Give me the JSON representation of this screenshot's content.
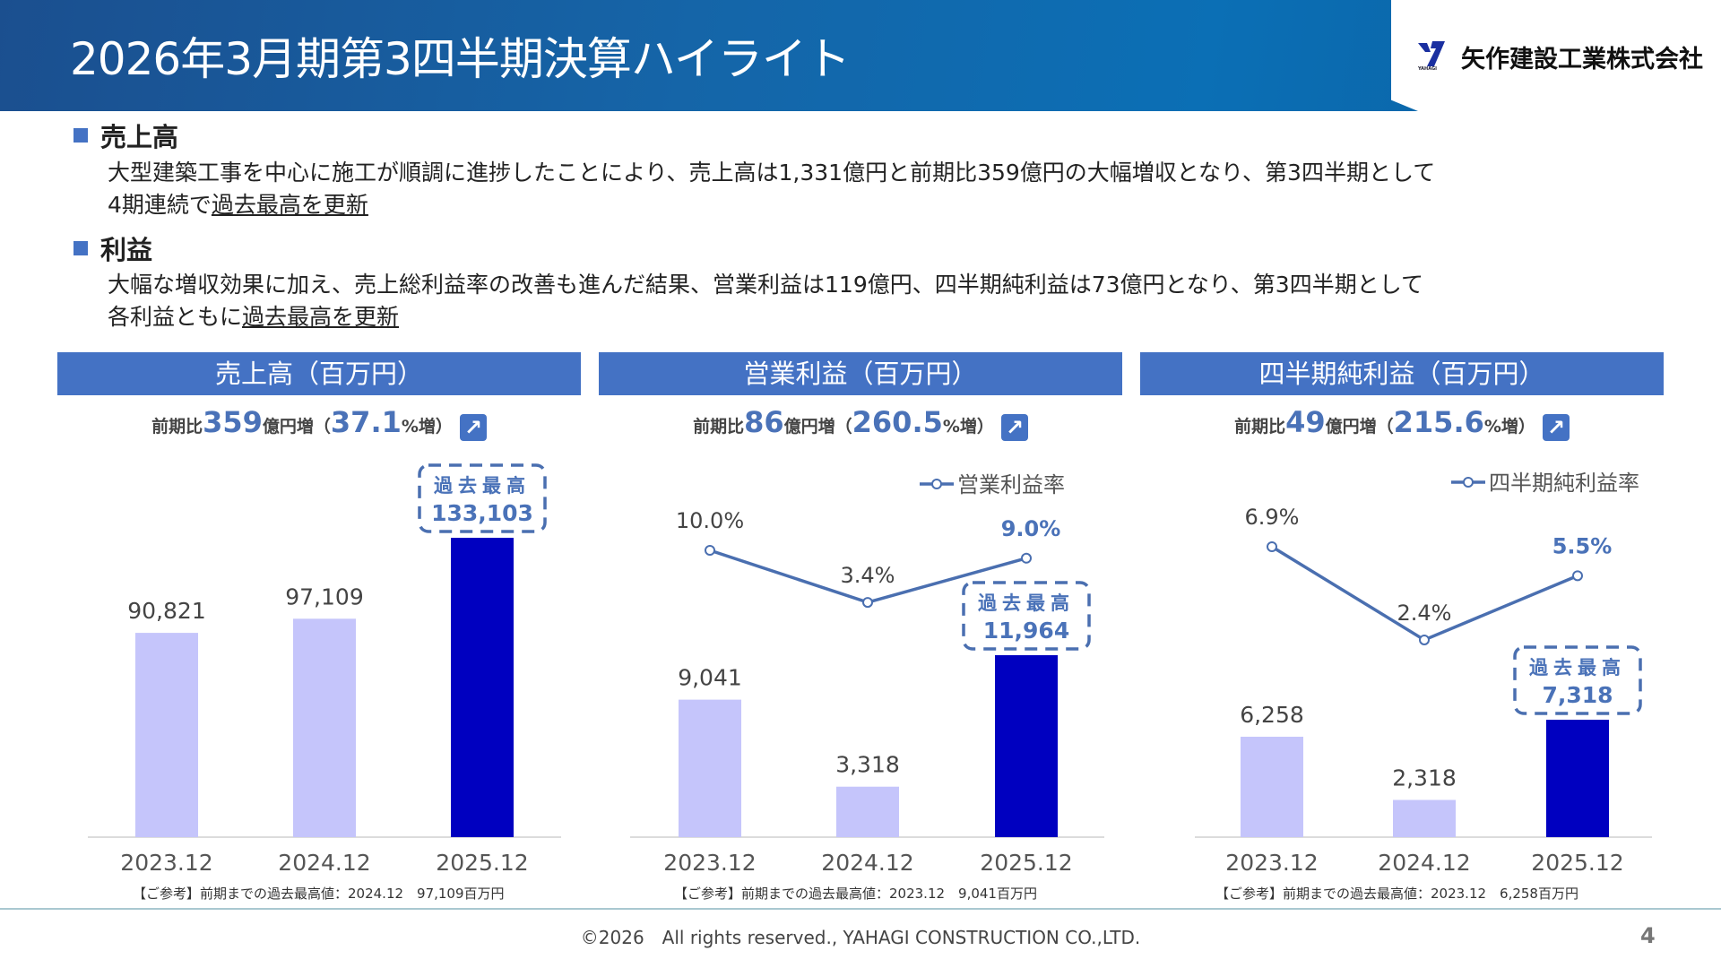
{
  "header": {
    "title": "2026年3月期第3四半期決算ハイライト",
    "company": "矢作建設工業株式会社",
    "logo_sub": "YAHAGI"
  },
  "sections": [
    {
      "heading": "売上高",
      "lines": [
        "大型建築工事を中心に施工が順調に進捗したことにより、売上高は1,331億円と前期比359億円の大幅増収となり、第3四半期として",
        "4期連続で"
      ],
      "underlined": "過去最高を更新"
    },
    {
      "heading": "利益",
      "lines": [
        "大幅な増収効果に加え、売上総利益率の改善も進んだ結果、営業利益は119億円、四半期純利益は73億円となり、第3四半期として",
        "各利益ともに"
      ],
      "underlined": "過去最高を更新"
    }
  ],
  "colors": {
    "header_blue": "#4472c4",
    "bar_prior": "#c5c5fb",
    "bar_current": "#0000c0",
    "line": "#4a6fb0",
    "accent_text": "#4a72b8"
  },
  "chart_data": [
    {
      "type": "bar",
      "title": "売上高（百万円）",
      "categories": [
        "2023.12",
        "2024.12",
        "2025.12"
      ],
      "values": [
        90821,
        97109,
        133103
      ],
      "labels": [
        "90,821",
        "97,109",
        "133,103"
      ],
      "comparison": {
        "prefix": "前期比",
        "amount": "359",
        "unit": "億円増（",
        "pct": "37.1",
        "pct_unit": "%増）"
      },
      "record_label": "過去最高",
      "note": "【ご参考】前期までの過去最高値：2024.12　97,109百万円"
    },
    {
      "type": "bar+line",
      "title": "営業利益（百万円）",
      "categories": [
        "2023.12",
        "2024.12",
        "2025.12"
      ],
      "values": [
        9041,
        3318,
        11964
      ],
      "labels": [
        "9,041",
        "3,318",
        "11,964"
      ],
      "line_series": {
        "name": "営業利益率",
        "values": [
          10.0,
          3.4,
          9.0
        ],
        "labels": [
          "10.0%",
          "3.4%",
          "9.0%"
        ]
      },
      "comparison": {
        "prefix": "前期比",
        "amount": "86",
        "unit": "億円増（",
        "pct": "260.5",
        "pct_unit": "%増）"
      },
      "record_label": "過去最高",
      "note": "【ご参考】前期までの過去最高値：2023.12　9,041百万円"
    },
    {
      "type": "bar+line",
      "title": "四半期純利益（百万円）",
      "categories": [
        "2023.12",
        "2024.12",
        "2025.12"
      ],
      "values": [
        6258,
        2318,
        7318
      ],
      "labels": [
        "6,258",
        "2,318",
        "7,318"
      ],
      "line_series": {
        "name": "四半期純利益率",
        "values": [
          6.9,
          2.4,
          5.5
        ],
        "labels": [
          "6.9%",
          "2.4%",
          "5.5%"
        ]
      },
      "comparison": {
        "prefix": "前期比",
        "amount": "49",
        "unit": "億円増（",
        "pct": "215.6",
        "pct_unit": "%増）"
      },
      "record_label": "過去最高",
      "note": "【ご参考】前期までの過去最高値：2023.12　6,258百万円"
    }
  ],
  "footer": {
    "copyright": "©2026　All rights reserved., YAHAGI CONSTRUCTION CO.,LTD.",
    "page": "4"
  }
}
